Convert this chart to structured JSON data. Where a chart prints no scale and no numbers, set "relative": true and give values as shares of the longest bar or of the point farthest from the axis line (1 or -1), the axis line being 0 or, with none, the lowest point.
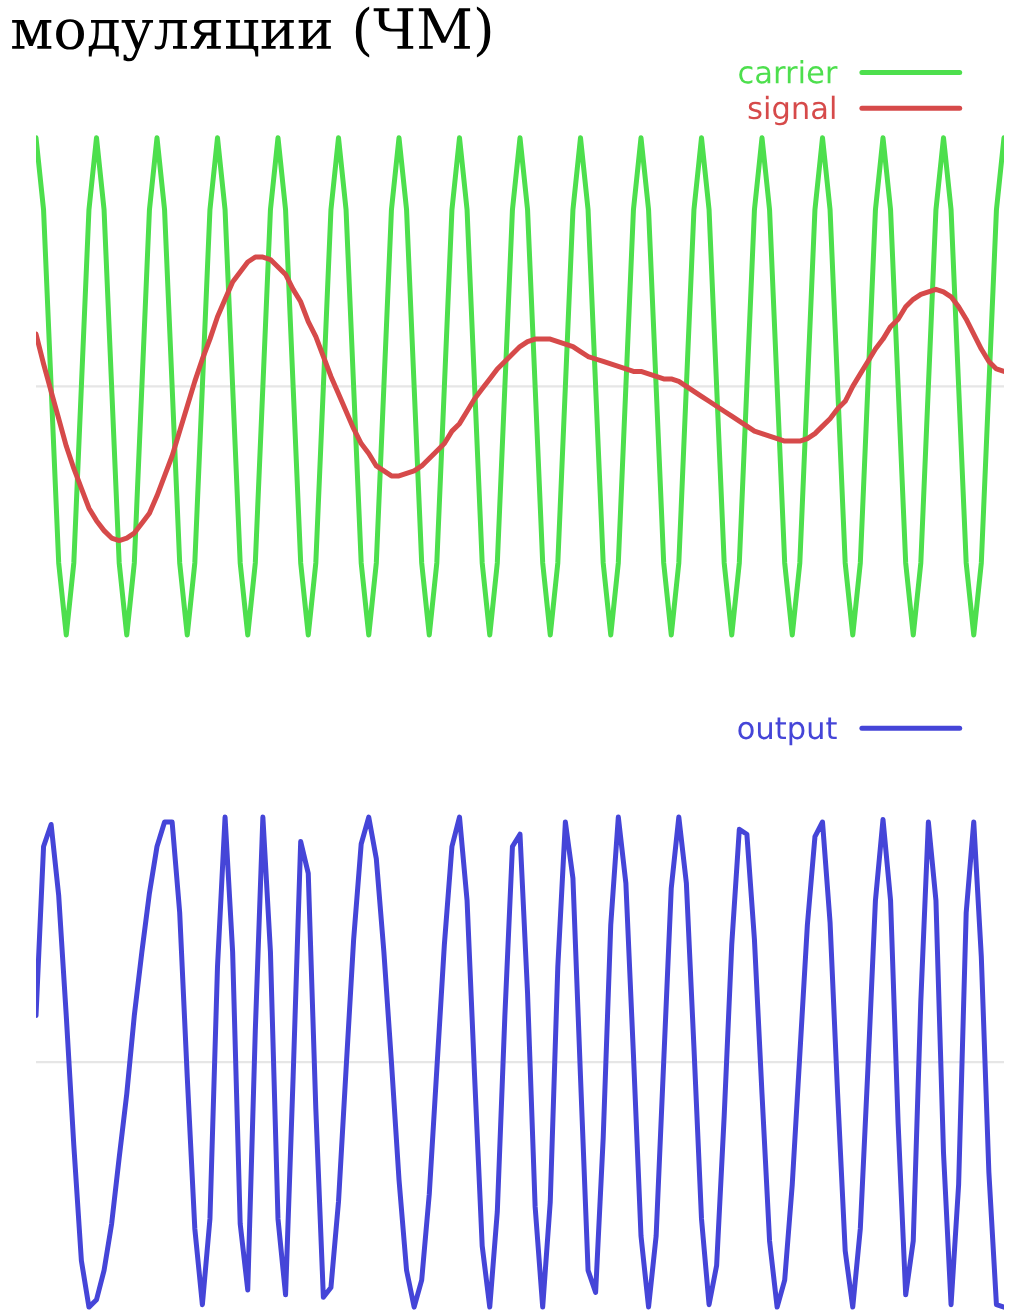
{
  "chart_data": [
    {
      "type": "line",
      "title": "модуляции (ЧМ)",
      "relative": true,
      "legend": "top right",
      "categories": [
        null,
        null,
        null,
        null,
        null,
        null,
        null,
        null,
        null,
        null,
        null,
        null,
        null,
        null,
        null,
        null,
        null,
        null,
        null,
        null,
        null,
        null,
        null,
        null,
        null,
        null,
        null,
        null,
        null,
        null,
        null,
        null,
        null,
        null,
        null,
        null,
        null,
        null,
        null,
        null,
        null,
        null,
        null,
        null,
        null,
        null,
        null,
        null,
        null,
        null,
        null,
        null,
        null,
        null,
        null,
        null,
        null,
        null,
        null,
        null,
        null,
        null,
        null,
        null,
        null,
        null,
        null,
        null,
        null,
        null,
        null,
        null,
        null,
        null,
        null,
        null,
        null,
        null,
        null,
        null,
        null,
        null,
        null,
        null,
        null,
        null,
        null,
        null,
        null,
        null,
        null,
        null,
        null,
        null,
        null,
        null,
        null,
        null,
        null,
        null,
        null,
        null,
        null,
        null,
        null,
        null,
        null,
        null,
        null,
        null,
        null,
        null,
        null,
        null,
        null,
        null,
        null,
        null,
        null,
        null,
        null,
        null,
        null,
        null,
        null,
        null,
        null,
        null,
        null
      ],
      "series": [
        {
          "name": "carrier",
          "color": "#4ddf4d",
          "values": [
            1,
            0.71,
            0,
            -0.71,
            -1,
            -0.71,
            0,
            0.71,
            1,
            0.71,
            0,
            -0.71,
            -1,
            -0.71,
            0,
            0.71,
            1,
            0.71,
            0,
            -0.71,
            -1,
            -0.71,
            0,
            0.71,
            1,
            0.71,
            0,
            -0.71,
            -1,
            -0.71,
            0,
            0.71,
            1,
            0.71,
            0,
            -0.71,
            -1,
            -0.71,
            0,
            0.71,
            1,
            0.71,
            0,
            -0.71,
            -1,
            -0.71,
            0,
            0.71,
            1,
            0.71,
            0,
            -0.71,
            -1,
            -0.71,
            0,
            0.71,
            1,
            0.71,
            0,
            -0.71,
            -1,
            -0.71,
            0,
            0.71,
            1,
            0.71,
            0,
            -0.71,
            -1,
            -0.71,
            0,
            0.71,
            1,
            0.71,
            0,
            -0.71,
            -1,
            -0.71,
            0,
            0.71,
            1,
            0.71,
            0,
            -0.71,
            -1,
            -0.71,
            0,
            0.71,
            1,
            0.71,
            0,
            -0.71,
            -1,
            -0.71,
            0,
            0.71,
            1,
            0.71,
            0,
            -0.71,
            -1,
            -0.71,
            0,
            0.71,
            1,
            0.71,
            0,
            -0.71,
            -1,
            -0.71,
            0,
            0.71,
            1,
            0.71,
            0,
            -0.71,
            -1,
            -0.71,
            0,
            0.71,
            1,
            0.71,
            0,
            -0.71,
            -1,
            -0.71,
            0,
            0.71,
            1
          ]
        },
        {
          "name": "signal",
          "color": "#d64a4a",
          "values": [
            0.21,
            0.09,
            -0.02,
            -0.13,
            -0.24,
            -0.33,
            -0.41,
            -0.49,
            -0.54,
            -0.58,
            -0.61,
            -0.62,
            -0.61,
            -0.59,
            -0.55,
            -0.51,
            -0.44,
            -0.36,
            -0.28,
            -0.18,
            -0.08,
            0.02,
            0.11,
            0.19,
            0.28,
            0.35,
            0.42,
            0.46,
            0.5,
            0.52,
            0.52,
            0.51,
            0.48,
            0.45,
            0.39,
            0.34,
            0.26,
            0.2,
            0.12,
            0.04,
            -0.03,
            -0.1,
            -0.17,
            -0.23,
            -0.27,
            -0.32,
            -0.34,
            -0.36,
            -0.36,
            -0.35,
            -0.34,
            -0.32,
            -0.29,
            -0.26,
            -0.23,
            -0.18,
            -0.15,
            -0.1,
            -0.05,
            -0.01,
            0.03,
            0.07,
            0.1,
            0.13,
            0.16,
            0.18,
            0.19,
            0.19,
            0.19,
            0.18,
            0.17,
            0.16,
            0.14,
            0.12,
            0.11,
            0.1,
            0.09,
            0.08,
            0.07,
            0.06,
            0.06,
            0.05,
            0.04,
            0.03,
            0.03,
            0.02,
            0,
            -0.02,
            -0.04,
            -0.06,
            -0.08,
            -0.1,
            -0.12,
            -0.14,
            -0.16,
            -0.18,
            -0.19,
            -0.2,
            -0.21,
            -0.22,
            -0.22,
            -0.22,
            -0.21,
            -0.19,
            -0.16,
            -0.13,
            -0.09,
            -0.06,
            0,
            0.05,
            0.1,
            0.15,
            0.19,
            0.24,
            0.27,
            0.32,
            0.35,
            0.37,
            0.38,
            0.39,
            0.38,
            0.36,
            0.32,
            0.27,
            0.21,
            0.15,
            0.1,
            0.07,
            0.06
          ]
        }
      ]
    },
    {
      "type": "line",
      "relative": true,
      "legend": "top right",
      "categories": [
        null,
        null,
        null,
        null,
        null,
        null,
        null,
        null,
        null,
        null,
        null,
        null,
        null,
        null,
        null,
        null,
        null,
        null,
        null,
        null,
        null,
        null,
        null,
        null,
        null,
        null,
        null,
        null,
        null,
        null,
        null,
        null,
        null,
        null,
        null,
        null,
        null,
        null,
        null,
        null,
        null,
        null,
        null,
        null,
        null,
        null,
        null,
        null,
        null,
        null,
        null,
        null,
        null,
        null,
        null,
        null,
        null,
        null,
        null,
        null,
        null,
        null,
        null,
        null,
        null,
        null,
        null,
        null,
        null,
        null,
        null,
        null,
        null,
        null,
        null,
        null,
        null,
        null,
        null,
        null,
        null,
        null,
        null,
        null,
        null,
        null,
        null,
        null,
        null,
        null,
        null,
        null,
        null,
        null,
        null,
        null,
        null,
        null,
        null,
        null,
        null,
        null,
        null,
        null,
        null,
        null,
        null,
        null,
        null,
        null,
        null,
        null,
        null,
        null,
        null,
        null,
        null,
        null,
        null,
        null,
        null,
        null,
        null,
        null,
        null,
        null,
        null,
        null,
        null
      ],
      "series": [
        {
          "name": "output",
          "color": "#4545d8",
          "values": [
            0.19,
            0.88,
            0.97,
            0.68,
            0.19,
            -0.34,
            -0.81,
            -1,
            -0.97,
            -0.85,
            -0.66,
            -0.39,
            -0.13,
            0.19,
            0.45,
            0.69,
            0.88,
            0.98,
            0.98,
            0.61,
            -0.06,
            -0.68,
            -0.99,
            -0.64,
            0.39,
            1,
            0.45,
            -0.66,
            -0.93,
            0.13,
            1,
            0.45,
            -0.64,
            -0.95,
            -0.06,
            0.9,
            0.77,
            -0.19,
            -0.96,
            -0.92,
            -0.57,
            -0.03,
            0.5,
            0.89,
            1,
            0.83,
            0.45,
            0,
            -0.48,
            -0.85,
            -1,
            -0.89,
            -0.54,
            -0.03,
            0.48,
            0.88,
            1,
            0.66,
            -0.06,
            -0.75,
            -1,
            -0.61,
            0.19,
            0.88,
            0.93,
            0.28,
            -0.59,
            -1,
            -0.57,
            0.39,
            0.98,
            0.75,
            -0.06,
            -0.85,
            -0.94,
            -0.31,
            0.56,
            1,
            0.73,
            0.03,
            -0.71,
            -1,
            -0.71,
            0,
            0.71,
            1,
            0.73,
            0.06,
            -0.64,
            -0.99,
            -0.83,
            -0.22,
            0.48,
            0.95,
            0.93,
            0.5,
            -0.13,
            -0.73,
            -1,
            -0.89,
            -0.5,
            0.03,
            0.56,
            0.92,
            0.98,
            0.57,
            -0.13,
            -0.77,
            -1,
            -0.68,
            -0.03,
            0.66,
            0.99,
            0.66,
            -0.25,
            -0.95,
            -0.73,
            0.25,
            0.98,
            0.66,
            -0.37,
            -0.99,
            -0.5,
            0.61,
            0.98,
            0.43,
            -0.45,
            -0.99,
            -1
          ]
        }
      ]
    }
  ]
}
